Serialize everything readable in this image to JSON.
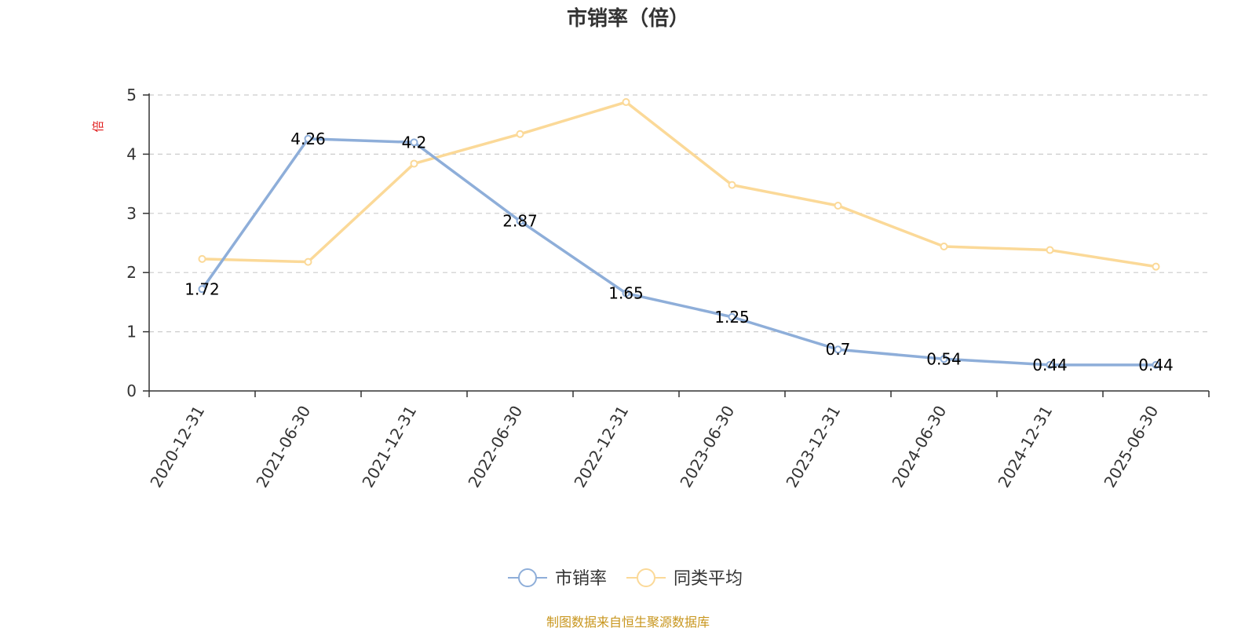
{
  "chart_data": {
    "type": "line",
    "title": "市销率（倍）",
    "ylabel": "倍",
    "ylim": [
      0,
      5
    ],
    "yticks": [
      0,
      1,
      2,
      3,
      4,
      5
    ],
    "grid": true,
    "legend_position": "bottom",
    "categories": [
      "2020-12-31",
      "2021-06-30",
      "2021-12-31",
      "2022-06-30",
      "2022-12-31",
      "2023-06-30",
      "2023-12-31",
      "2024-06-30",
      "2024-12-31",
      "2025-06-30"
    ],
    "series": [
      {
        "name": "市销率",
        "color": "#8eaed9",
        "values": [
          1.72,
          4.26,
          4.2,
          2.87,
          1.65,
          1.25,
          0.7,
          0.54,
          0.44,
          0.44
        ],
        "labels": [
          "1.72",
          "4.26",
          "4.2",
          "2.87",
          "1.65",
          "1.25",
          "0.7",
          "0.54",
          "0.44",
          "0.44"
        ]
      },
      {
        "name": "同类平均",
        "color": "#fbd998",
        "values": [
          2.23,
          2.18,
          3.84,
          4.34,
          4.88,
          3.48,
          3.13,
          2.44,
          2.38,
          2.1
        ]
      }
    ]
  },
  "axis_label_color": "#e02020",
  "source_note": "制图数据来自恒生聚源数据库",
  "source_color": "#c8961e"
}
